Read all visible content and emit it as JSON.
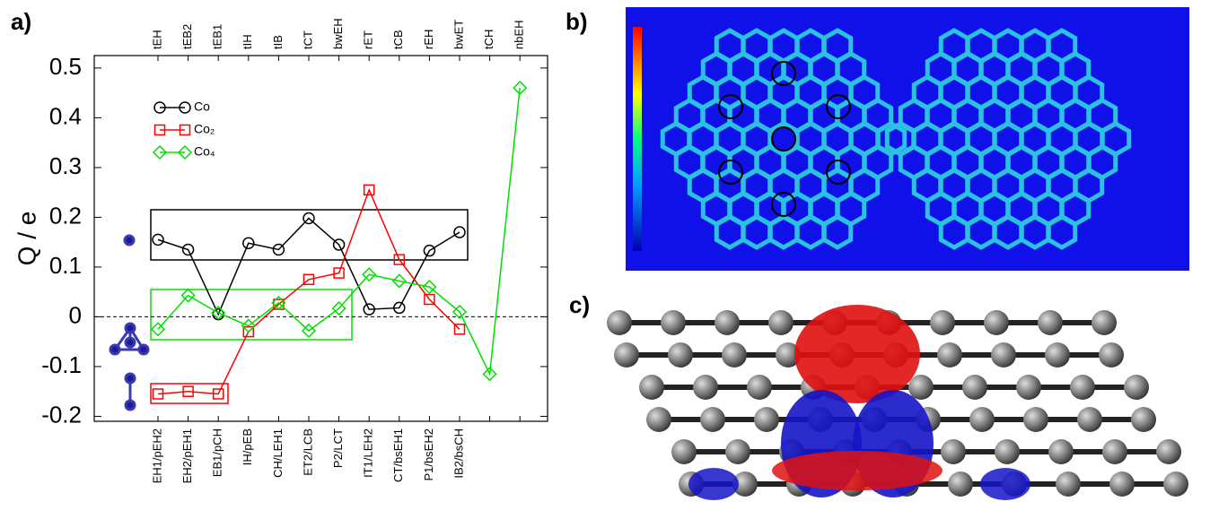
{
  "panel_labels": [
    "a)",
    "b)",
    "c)"
  ],
  "chart_data": {
    "type": "line",
    "y_label": "Q / e",
    "categories": [
      "tEH",
      "tEB2",
      "tEB1",
      "tIH",
      "tIB",
      "tCT",
      "bwEH",
      "rET",
      "tCB",
      "rEH",
      "bwET",
      "tCH",
      "nbEH"
    ],
    "categories2": [
      "EH1/pEH2",
      "EH2/pEH1",
      "EB1/pCH",
      "IH/pEB",
      "CH/LEH1",
      "ET2/LCB",
      "P2/LCT",
      "IT1/LEH2",
      "CT/bsEH1",
      "P1/bsEH2",
      "IB2/bsCH",
      null,
      null
    ],
    "series": [
      {
        "name": "Co",
        "color": "#000000",
        "marker": "circle",
        "values": [
          0.155,
          0.135,
          0.005,
          0.148,
          0.135,
          0.198,
          0.145,
          0.015,
          0.018,
          0.133,
          0.17,
          null,
          null
        ]
      },
      {
        "name": "Co₂",
        "color": "#ff0000",
        "marker": "square",
        "values": [
          -0.155,
          -0.15,
          -0.155,
          -0.03,
          0.025,
          0.075,
          0.088,
          0.255,
          0.115,
          0.035,
          -0.025,
          null,
          null
        ]
      },
      {
        "name": "Co₄",
        "color": "#00e000",
        "marker": "diamond",
        "values": [
          -0.025,
          0.043,
          0.008,
          -0.018,
          0.028,
          -0.028,
          0.017,
          0.085,
          0.072,
          0.06,
          0.01,
          -0.115,
          0.46
        ]
      }
    ],
    "ylim": [
      -0.21,
      0.525
    ],
    "yticks": [
      -0.2,
      -0.1,
      0,
      0.1,
      0.2,
      0.3,
      0.4,
      0.5
    ]
  }
}
